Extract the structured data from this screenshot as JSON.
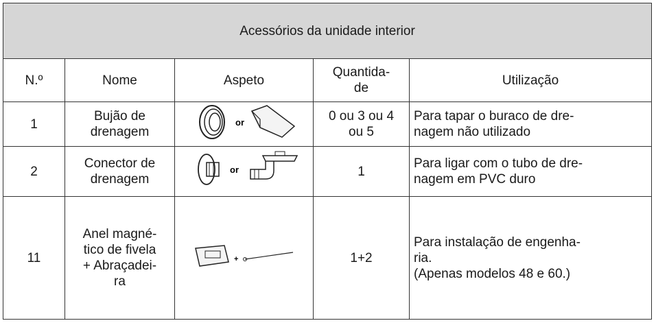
{
  "table": {
    "title": "Acessórios da unidade interior",
    "header": [
      "N.º",
      "Nome",
      "Aspeto",
      [
        "Quantida-",
        "de"
      ],
      "Utilização"
    ],
    "rows": [
      {
        "number": "1",
        "name": [
          "Bujão de",
          "drenagem"
        ],
        "aspect_separator": "or",
        "quantity": [
          "0 ou 3 ou 4",
          "ou 5"
        ],
        "use": [
          "Para tapar o buraco de dre-",
          "nagem não utilizado"
        ]
      },
      {
        "number": "2",
        "name": [
          "Conector de",
          "drenagem"
        ],
        "aspect_separator": "or",
        "quantity": [
          "1"
        ],
        "use": [
          "Para ligar com o tubo de dre-",
          "nagem em PVC duro"
        ]
      },
      {
        "number": "11",
        "name": [
          "Anel magné-",
          "tico de fivela",
          "+ Abraçadei-",
          "ra"
        ],
        "aspect_separator": "+",
        "quantity": [
          "1+2"
        ],
        "use": [
          "Para instalação de engenha-",
          "ria.",
          "(Apenas modelos 48 e 60.)"
        ]
      }
    ]
  }
}
